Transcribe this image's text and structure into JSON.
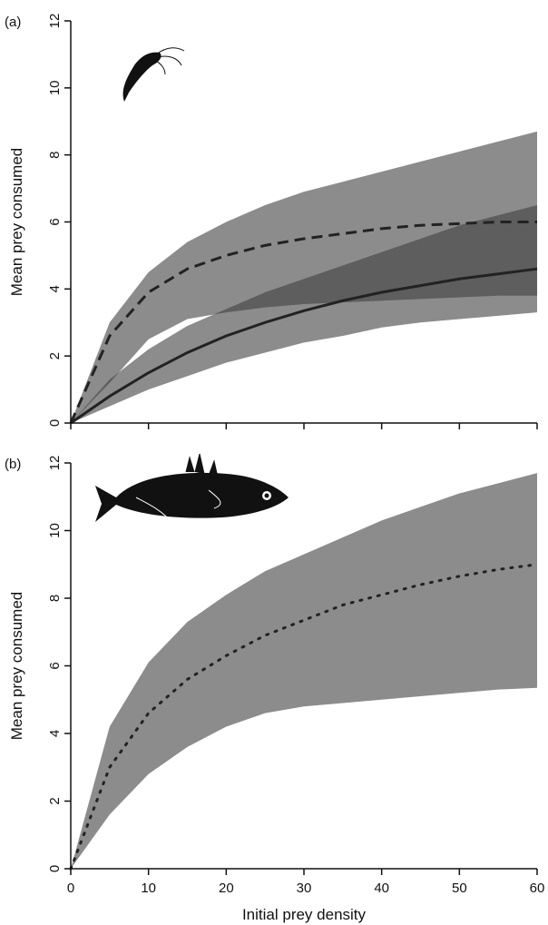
{
  "chart_data": [
    {
      "type": "line",
      "label": "(a)",
      "ylabel": "Mean prey consumed",
      "x": [
        0,
        5,
        10,
        15,
        20,
        25,
        30,
        35,
        40,
        45,
        50,
        55,
        60
      ],
      "xlim": [
        0,
        60
      ],
      "xticks": [
        0,
        10,
        20,
        30,
        40,
        50,
        60
      ],
      "show_xtick_labels": false,
      "ylim": [
        0,
        12
      ],
      "yticks": [
        0,
        2,
        4,
        6,
        8,
        10,
        12
      ],
      "band_color": "#404040",
      "band_opacity": 0.6,
      "series": [
        {
          "color": "#222222",
          "dash": "dashed",
          "values": [
            0,
            2.6,
            3.9,
            4.6,
            5.0,
            5.3,
            5.5,
            5.65,
            5.8,
            5.9,
            5.95,
            6.0,
            6.0
          ],
          "upper": [
            0,
            3.0,
            4.5,
            5.4,
            6.0,
            6.5,
            6.9,
            7.2,
            7.5,
            7.8,
            8.1,
            8.4,
            8.7
          ],
          "lower": [
            0,
            1.2,
            2.5,
            3.1,
            3.3,
            3.45,
            3.55,
            3.6,
            3.65,
            3.7,
            3.75,
            3.8,
            3.8
          ]
        },
        {
          "color": "#222222",
          "dash": "solid",
          "values": [
            0,
            0.8,
            1.5,
            2.1,
            2.6,
            3.0,
            3.35,
            3.65,
            3.9,
            4.1,
            4.3,
            4.45,
            4.6
          ],
          "upper": [
            0,
            1.3,
            2.2,
            2.9,
            3.4,
            3.9,
            4.3,
            4.7,
            5.1,
            5.5,
            5.9,
            6.2,
            6.5
          ],
          "lower": [
            0,
            0.5,
            1.0,
            1.4,
            1.8,
            2.1,
            2.4,
            2.6,
            2.85,
            3.0,
            3.1,
            3.2,
            3.3
          ]
        }
      ]
    },
    {
      "type": "line",
      "label": "(b)",
      "ylabel": "Mean prey consumed",
      "xlabel": "Initial prey density",
      "x": [
        0,
        5,
        10,
        15,
        20,
        25,
        30,
        35,
        40,
        45,
        50,
        55,
        60
      ],
      "xlim": [
        0,
        60
      ],
      "xticks": [
        0,
        10,
        20,
        30,
        40,
        50,
        60
      ],
      "show_xtick_labels": true,
      "ylim": [
        0,
        12
      ],
      "yticks": [
        0,
        2,
        4,
        6,
        8,
        10,
        12
      ],
      "band_color": "#404040",
      "band_opacity": 0.6,
      "series": [
        {
          "color": "#222222",
          "dash": "dotted",
          "values": [
            0,
            3.0,
            4.6,
            5.6,
            6.3,
            6.9,
            7.35,
            7.8,
            8.1,
            8.4,
            8.65,
            8.85,
            9.0
          ],
          "upper": [
            0,
            4.2,
            6.1,
            7.3,
            8.1,
            8.8,
            9.3,
            9.8,
            10.3,
            10.7,
            11.1,
            11.4,
            11.7
          ],
          "lower": [
            0,
            1.6,
            2.8,
            3.6,
            4.2,
            4.6,
            4.8,
            4.9,
            5.0,
            5.1,
            5.2,
            5.3,
            5.35
          ]
        }
      ]
    }
  ]
}
